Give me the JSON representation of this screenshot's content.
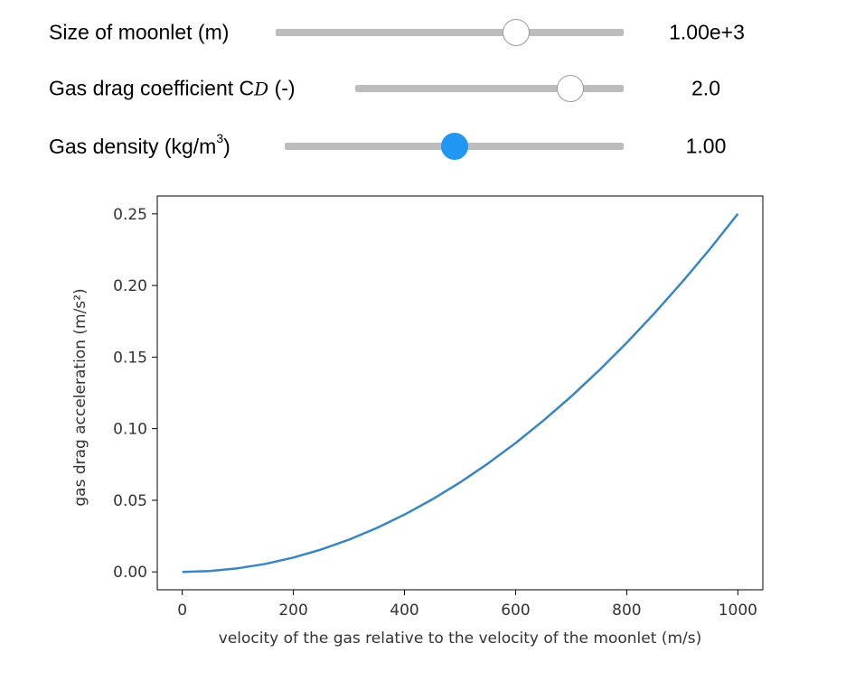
{
  "sliders": [
    {
      "label": "Size of moonlet (m)",
      "value": "1.00e+3",
      "fraction": 0.69,
      "active": false
    },
    {
      "label_prefix": "Gas drag coefficient C",
      "label_sub": "D",
      "label_suffix": " (-)",
      "value": "2.0",
      "fraction": 0.8,
      "active": false
    },
    {
      "label_prefix": "Gas density (kg/m",
      "label_sup": "3",
      "label_suffix": ")",
      "value": "1.00",
      "fraction": 0.5,
      "active": true
    }
  ],
  "chart_data": {
    "type": "line",
    "xlabel": "velocity of the gas relative to the velocity of the moonlet (m/s)",
    "ylabel": "gas drag acceleration (m/s²)",
    "xlim": [
      -45,
      1045
    ],
    "ylim": [
      -0.0125,
      0.2625
    ],
    "xticks": [
      0,
      200,
      400,
      600,
      800,
      1000
    ],
    "yticks": [
      0.0,
      0.05,
      0.1,
      0.15,
      0.2,
      0.25
    ],
    "xtick_labels": [
      "0",
      "200",
      "400",
      "600",
      "800",
      "1000"
    ],
    "ytick_labels": [
      "0.00",
      "0.05",
      "0.10",
      "0.15",
      "0.20",
      "0.25"
    ],
    "grid": false,
    "series": [
      {
        "color": "#3a85c0",
        "x": [
          0,
          50,
          100,
          150,
          200,
          250,
          300,
          350,
          400,
          450,
          500,
          550,
          600,
          650,
          700,
          750,
          800,
          850,
          900,
          950,
          1000
        ],
        "y": [
          0.0,
          0.000625,
          0.0025,
          0.005625,
          0.01,
          0.015625,
          0.0225,
          0.030625,
          0.04,
          0.050625,
          0.0625,
          0.075625,
          0.09,
          0.105625,
          0.1225,
          0.140625,
          0.16,
          0.180625,
          0.2025,
          0.225625,
          0.25
        ]
      }
    ]
  }
}
